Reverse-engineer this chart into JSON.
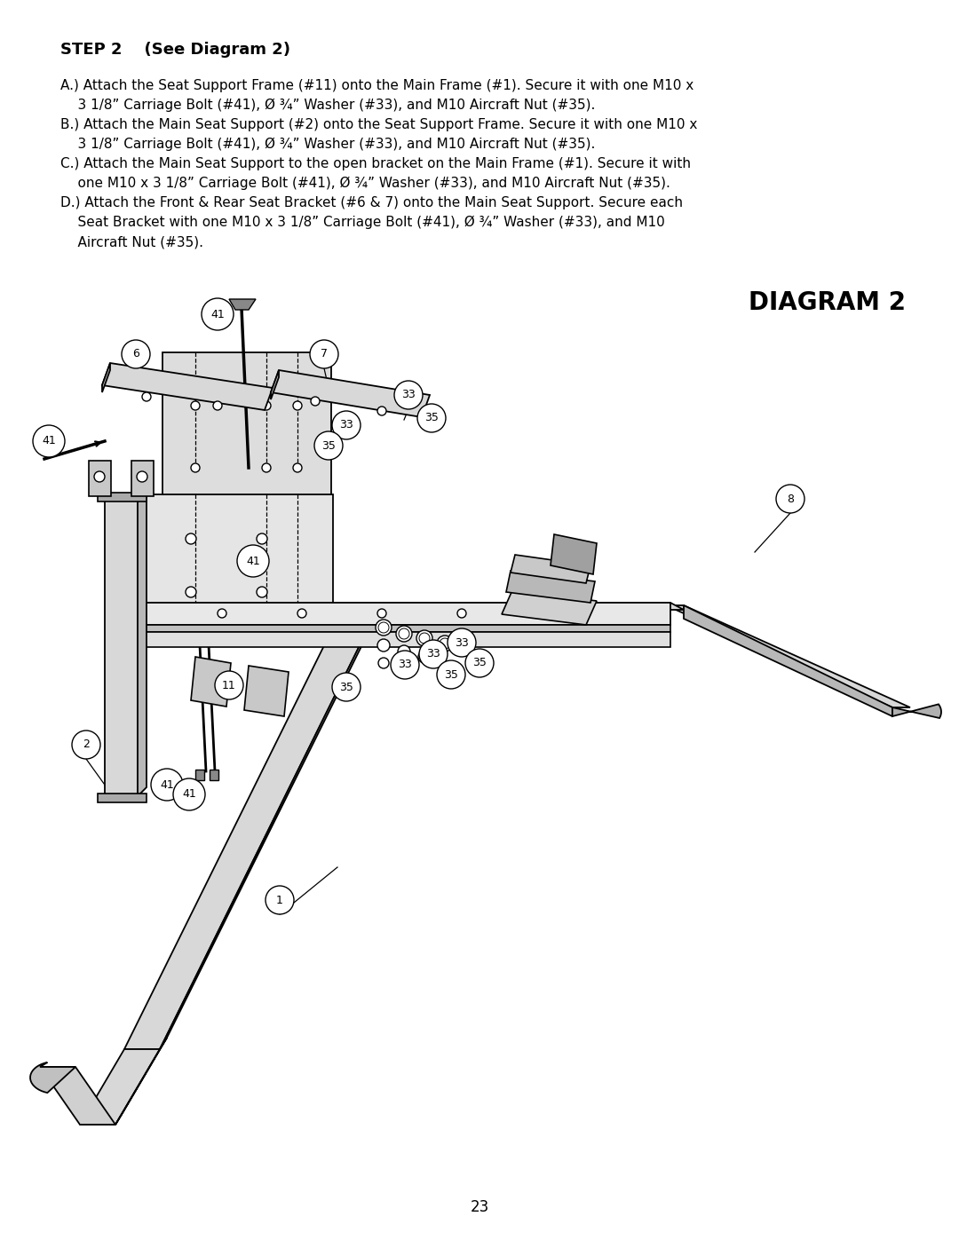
{
  "bg_color": "#ffffff",
  "title": "DIAGRAM 2",
  "step_header": "STEP 2    (See Diagram 2)",
  "page_number": "23",
  "font_color": "#000000",
  "instruction_lines": [
    [
      "A.) Attach the Seat Support Frame (#11) onto the Main Frame (#1). Secure it with one M10 x",
      false
    ],
    [
      "    3 1/8” Carriage Bolt (#41), Ø ¾” Washer (#33), and M10 Aircraft Nut (#35).",
      false
    ],
    [
      "B.) Attach the Main Seat Support (#2) onto the Seat Support Frame. Secure it with one M10 x",
      false
    ],
    [
      "    3 1/8” Carriage Bolt (#41), Ø ¾” Washer (#33), and M10 Aircraft Nut (#35).",
      false
    ],
    [
      "C.) Attach the Main Seat Support to the open bracket on the Main Frame (#1). Secure it with",
      false
    ],
    [
      "    one M10 x 3 1/8” Carriage Bolt (#41), Ø ¾” Washer (#33), and M10 Aircraft Nut (#35).",
      false
    ],
    [
      "D.) Attach the Front & Rear Seat Bracket (#6 & 7) onto the Main Seat Support. Secure each",
      false
    ],
    [
      "    Seat Bracket with one M10 x 3 1/8” Carriage Bolt (#41), Ø ¾” Washer (#33), and M10",
      false
    ],
    [
      "    Aircraft Nut (#35).",
      false
    ]
  ]
}
